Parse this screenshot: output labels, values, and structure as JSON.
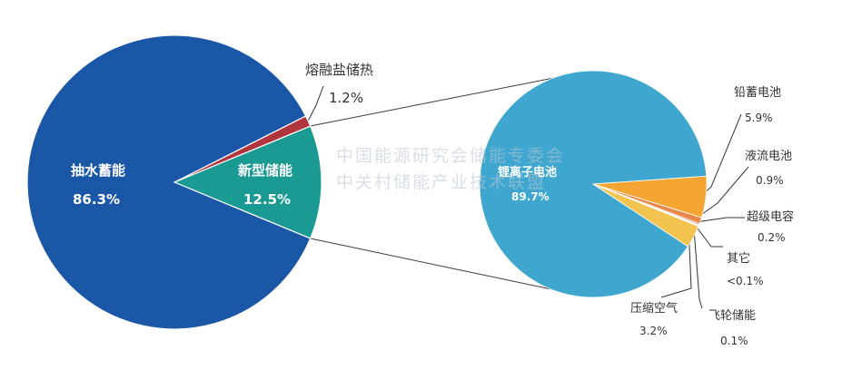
{
  "chart_data": [
    {
      "type": "pie",
      "slices": [
        {
          "label": "抽水蓄能",
          "value": 86.3,
          "display": "86.3%",
          "color": "#1b57a7"
        },
        {
          "label": "熔融盐储热",
          "value": 1.2,
          "display": "1.2%",
          "color": "#b0353c"
        },
        {
          "label": "新型储能",
          "value": 12.5,
          "display": "12.5%",
          "color": "#1a9a93"
        }
      ]
    },
    {
      "type": "pie",
      "slices": [
        {
          "label": "锂离子电池",
          "value": 89.7,
          "display": "89.7%",
          "color": "#3fa7cf"
        },
        {
          "label": "铅蓄电池",
          "value": 5.9,
          "display": "5.9%",
          "color": "#f5a531"
        },
        {
          "label": "液流电池",
          "value": 0.9,
          "display": "0.9%",
          "color": "#e8894a"
        },
        {
          "label": "超级电容",
          "value": 0.2,
          "display": "0.2%",
          "color": "#c76a6a"
        },
        {
          "label": "其它",
          "value": 0.1,
          "display": "<0.1%",
          "color": "#d4b06a"
        },
        {
          "label": "飞轮储能",
          "value": 0.1,
          "display": "0.1%",
          "color": "#e9d07a"
        },
        {
          "label": "压缩空气",
          "value": 3.2,
          "display": "3.2%",
          "color": "#f3c34f"
        }
      ]
    }
  ],
  "watermark": {
    "line1": "中国能源研究会储能专委会",
    "line2": "中关村储能产业技术联盟"
  }
}
